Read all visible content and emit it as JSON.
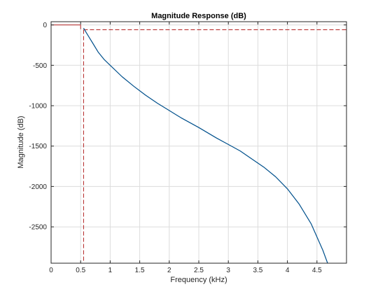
{
  "chart_data": {
    "type": "line",
    "title": "Magnitude Response (dB)",
    "xlabel": "Frequency (kHz)",
    "ylabel": "Magnitude (dB)",
    "xlim": [
      0,
      5.0
    ],
    "ylim": [
      -2950,
      40
    ],
    "grid": true,
    "xticks": [
      0,
      0.5,
      1,
      1.5,
      2,
      2.5,
      3,
      3.5,
      4,
      4.5
    ],
    "xtick_labels": [
      "0",
      "0.5",
      "1",
      "1.5",
      "2",
      "2.5",
      "3",
      "3.5",
      "4",
      "4.5"
    ],
    "yticks": [
      0,
      -500,
      -1000,
      -1500,
      -2000,
      -2500
    ],
    "ytick_labels": [
      "0",
      "-500",
      "-1000",
      "-1500",
      "-2000",
      "-2500"
    ],
    "series": [
      {
        "color": "#00508c",
        "x": [
          0.55,
          0.6,
          0.7,
          0.8,
          0.9,
          1.0,
          1.2,
          1.4,
          1.6,
          1.8,
          2.0,
          2.2,
          2.5,
          2.8,
          3.0,
          3.2,
          3.4,
          3.6,
          3.8,
          4.0,
          4.2,
          4.4,
          4.6,
          4.68
        ],
        "y": [
          -40,
          -100,
          -220,
          -340,
          -430,
          -500,
          -640,
          -760,
          -870,
          -970,
          -1060,
          -1150,
          -1270,
          -1400,
          -1480,
          -1560,
          -1660,
          -1760,
          -1880,
          -2030,
          -2220,
          -2460,
          -2790,
          -2950
        ]
      }
    ],
    "mask": {
      "color": "#b22222",
      "passband_edge_khz": 0.5,
      "stopband_edge_khz": 0.55,
      "passband_level_db": 0,
      "stopband_level_db": -60
    }
  }
}
